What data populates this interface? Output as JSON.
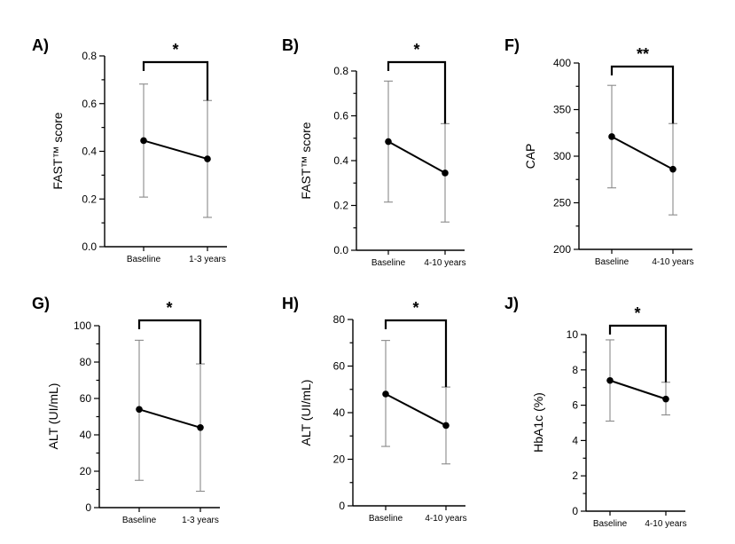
{
  "chart_data": [
    {
      "id": "A",
      "panel_label": "A)",
      "type": "line",
      "ylabel": "FAST™ score",
      "ylim": [
        0,
        0.8
      ],
      "y_ticks": [
        "0.0",
        "0.2",
        "0.4",
        "0.6",
        "0.8"
      ],
      "categories": [
        "Baseline",
        "1-3 years"
      ],
      "values": [
        0.445,
        0.368
      ],
      "err_low": [
        0.208,
        0.123
      ],
      "err_high": [
        0.682,
        0.613
      ],
      "significance": "*"
    },
    {
      "id": "B",
      "panel_label": "B)",
      "type": "line",
      "ylabel": "FAST™ score",
      "ylim": [
        0,
        0.8
      ],
      "y_ticks": [
        "0.0",
        "0.2",
        "0.4",
        "0.6",
        "0.8"
      ],
      "categories": [
        "Baseline",
        "4-10 years"
      ],
      "values": [
        0.485,
        0.345
      ],
      "err_low": [
        0.215,
        0.126
      ],
      "err_high": [
        0.755,
        0.565
      ],
      "significance": "*"
    },
    {
      "id": "F",
      "panel_label": "F)",
      "type": "line",
      "ylabel": "CAP",
      "ylim": [
        200,
        400
      ],
      "y_ticks": [
        "200",
        "250",
        "300",
        "350",
        "400"
      ],
      "categories": [
        "Baseline",
        "4-10 years"
      ],
      "values": [
        321,
        286
      ],
      "err_low": [
        266,
        237
      ],
      "err_high": [
        376,
        335
      ],
      "significance": "**"
    },
    {
      "id": "G",
      "panel_label": "G)",
      "type": "line",
      "ylabel": "ALT (UI/mL)",
      "ylim": [
        0,
        100
      ],
      "y_ticks": [
        "0",
        "20",
        "40",
        "60",
        "80",
        "100"
      ],
      "categories": [
        "Baseline",
        "1-3 years"
      ],
      "values": [
        54,
        44
      ],
      "err_low": [
        15,
        9
      ],
      "err_high": [
        92,
        79
      ],
      "significance": "*"
    },
    {
      "id": "H",
      "panel_label": "H)",
      "type": "line",
      "ylabel": "ALT (UI/mL)",
      "ylim": [
        0,
        80
      ],
      "y_ticks": [
        "0",
        "20",
        "40",
        "60",
        "80"
      ],
      "categories": [
        "Baseline",
        "4-10 years"
      ],
      "values": [
        48,
        34.5
      ],
      "err_low": [
        25.5,
        18
      ],
      "err_high": [
        71,
        51
      ],
      "significance": "*"
    },
    {
      "id": "J",
      "panel_label": "J)",
      "type": "line",
      "ylabel": "HbA1c (%)",
      "ylim": [
        0,
        10
      ],
      "y_ticks": [
        "0",
        "2",
        "4",
        "6",
        "8",
        "10"
      ],
      "categories": [
        "Baseline",
        "4-10 years"
      ],
      "values": [
        7.4,
        6.35
      ],
      "err_low": [
        5.1,
        5.45
      ],
      "err_high": [
        9.7,
        7.3
      ],
      "significance": "*"
    }
  ]
}
